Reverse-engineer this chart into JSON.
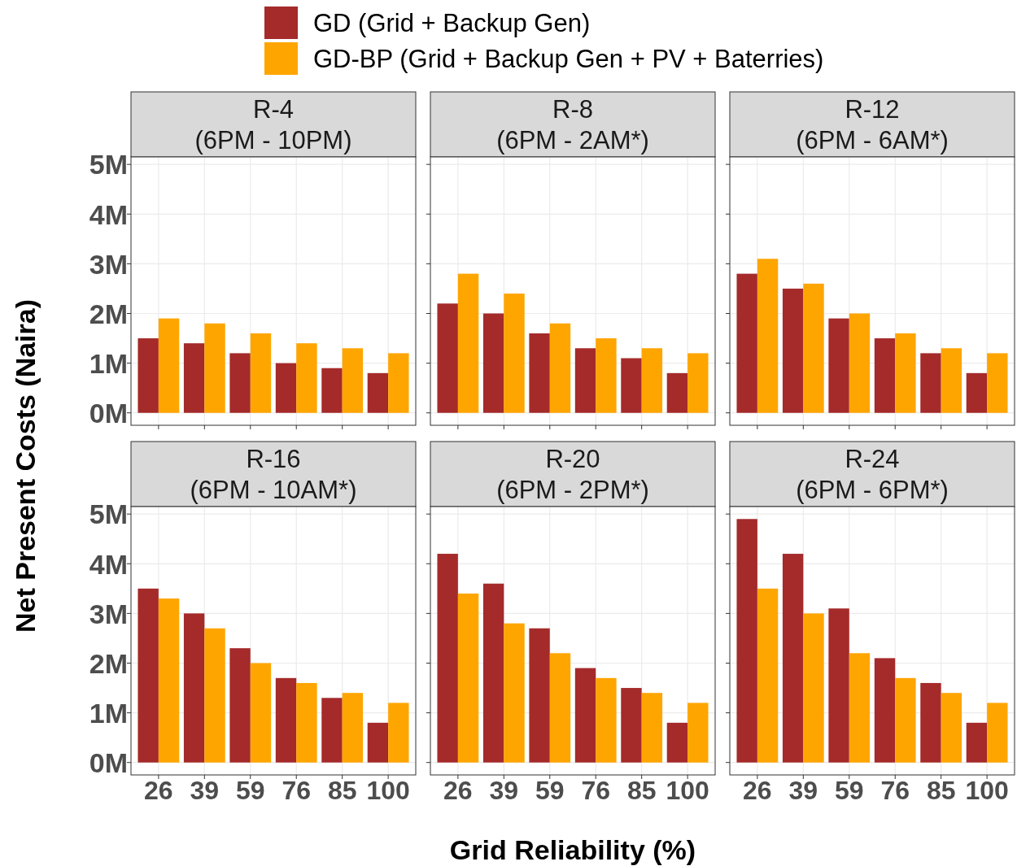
{
  "chart_data": [
    {
      "type": "bar",
      "title": "R-4\n(6PM - 10PM)",
      "ylabel": "Net Present Costs (Naira)",
      "categories": [
        "26",
        "39",
        "59",
        "76",
        "85",
        "100"
      ],
      "ylim": [
        -0.25,
        5.15
      ],
      "yticks": [
        {
          "value": 0,
          "label": "0M"
        },
        {
          "value": 1,
          "label": "1M"
        },
        {
          "value": 2,
          "label": "2M"
        },
        {
          "value": 3,
          "label": "3M"
        },
        {
          "value": 4,
          "label": "4M"
        },
        {
          "value": 5,
          "label": "5M"
        }
      ],
      "grid": true,
      "legend": "top",
      "tick_labels": "y",
      "series": [
        {
          "name": "GD (Grid + Backup Gen)",
          "color": "#a52a2a",
          "values": [
            1.5,
            1.4,
            1.2,
            1.0,
            0.9,
            0.8
          ]
        },
        {
          "name": "GD-BP (Grid + Backup Gen + PV + Baterries)",
          "color": "#ffa500",
          "values": [
            1.9,
            1.8,
            1.6,
            1.4,
            1.3,
            1.2
          ]
        }
      ]
    },
    {
      "type": "bar",
      "title": "R-8\n(6PM - 2AM*)",
      "categories": [
        "26",
        "39",
        "59",
        "76",
        "85",
        "100"
      ],
      "ylim": [
        -0.25,
        5.15
      ],
      "yticks": [
        {
          "value": 0,
          "label": null
        },
        {
          "value": 1,
          "label": null
        },
        {
          "value": 2,
          "label": null
        },
        {
          "value": 3,
          "label": null
        },
        {
          "value": 4,
          "label": null
        },
        {
          "value": 5,
          "label": null
        }
      ],
      "grid": true,
      "tick_labels": false,
      "series": [
        {
          "color": "#a52a2a",
          "values": [
            2.2,
            2.0,
            1.6,
            1.3,
            1.1,
            0.8
          ]
        },
        {
          "color": "#ffa500",
          "values": [
            2.8,
            2.4,
            1.8,
            1.5,
            1.3,
            1.2
          ]
        }
      ]
    },
    {
      "type": "bar",
      "title": "R-12\n(6PM - 6AM*)",
      "categories": [
        "26",
        "39",
        "59",
        "76",
        "85",
        "100"
      ],
      "ylim": [
        -0.25,
        5.15
      ],
      "yticks": [
        {
          "value": 0,
          "label": null
        },
        {
          "value": 1,
          "label": null
        },
        {
          "value": 2,
          "label": null
        },
        {
          "value": 3,
          "label": null
        },
        {
          "value": 4,
          "label": null
        },
        {
          "value": 5,
          "label": null
        }
      ],
      "grid": true,
      "tick_labels": false,
      "series": [
        {
          "color": "#a52a2a",
          "values": [
            2.8,
            2.5,
            1.9,
            1.5,
            1.2,
            0.8
          ]
        },
        {
          "color": "#ffa500",
          "values": [
            3.1,
            2.6,
            2.0,
            1.6,
            1.3,
            1.2
          ]
        }
      ]
    },
    {
      "type": "bar",
      "title": "R-16\n(6PM - 10AM*)",
      "categories": [
        "26",
        "39",
        "59",
        "76",
        "85",
        "100"
      ],
      "ylim": [
        -0.25,
        5.15
      ],
      "yticks": [
        {
          "value": 0,
          "label": "0M"
        },
        {
          "value": 1,
          "label": "1M"
        },
        {
          "value": 2,
          "label": "2M"
        },
        {
          "value": 3,
          "label": "3M"
        },
        {
          "value": 4,
          "label": "4M"
        },
        {
          "value": 5,
          "label": "5M"
        }
      ],
      "grid": true,
      "series": [
        {
          "color": "#a52a2a",
          "values": [
            3.5,
            3.0,
            2.3,
            1.7,
            1.3,
            0.8
          ]
        },
        {
          "color": "#ffa500",
          "values": [
            3.3,
            2.7,
            2.0,
            1.6,
            1.4,
            1.2
          ]
        }
      ]
    },
    {
      "type": "bar",
      "title": "R-20\n(6PM - 2PM*)",
      "xlabel": "Grid Reliability (%)",
      "categories": [
        "26",
        "39",
        "59",
        "76",
        "85",
        "100"
      ],
      "ylim": [
        -0.25,
        5.15
      ],
      "yticks": [
        {
          "value": 0,
          "label": null
        },
        {
          "value": 1,
          "label": null
        },
        {
          "value": 2,
          "label": null
        },
        {
          "value": 3,
          "label": null
        },
        {
          "value": 4,
          "label": null
        },
        {
          "value": 5,
          "label": null
        }
      ],
      "grid": true,
      "tick_labels": "x",
      "series": [
        {
          "color": "#a52a2a",
          "values": [
            4.2,
            3.6,
            2.7,
            1.9,
            1.5,
            0.8
          ]
        },
        {
          "color": "#ffa500",
          "values": [
            3.4,
            2.8,
            2.2,
            1.7,
            1.4,
            1.2
          ]
        }
      ]
    },
    {
      "type": "bar",
      "title": "R-24\n(6PM - 6PM*)",
      "categories": [
        "26",
        "39",
        "59",
        "76",
        "85",
        "100"
      ],
      "ylim": [
        -0.25,
        5.15
      ],
      "yticks": [
        {
          "value": 0,
          "label": null
        },
        {
          "value": 1,
          "label": null
        },
        {
          "value": 2,
          "label": null
        },
        {
          "value": 3,
          "label": null
        },
        {
          "value": 4,
          "label": null
        },
        {
          "value": 5,
          "label": null
        }
      ],
      "grid": true,
      "tick_labels": "x",
      "series": [
        {
          "color": "#a52a2a",
          "values": [
            4.9,
            4.2,
            3.1,
            2.1,
            1.6,
            0.8
          ]
        },
        {
          "color": "#ffa500",
          "values": [
            3.5,
            3.0,
            2.2,
            1.7,
            1.4,
            1.2
          ]
        }
      ]
    }
  ]
}
